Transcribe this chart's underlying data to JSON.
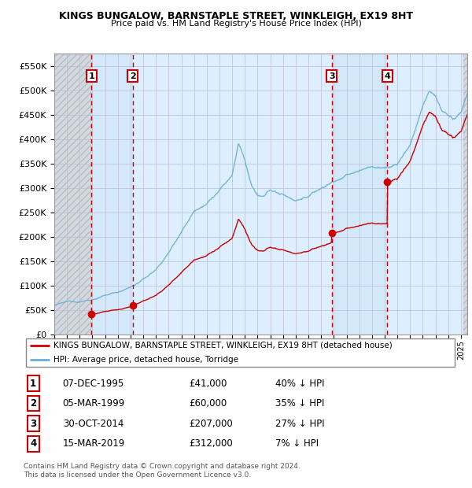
{
  "title1": "KINGS BUNGALOW, BARNSTAPLE STREET, WINKLEIGH, EX19 8HT",
  "title2": "Price paid vs. HM Land Registry's House Price Index (HPI)",
  "xlim_start": 1993.0,
  "xlim_end": 2025.5,
  "ylim_min": 0,
  "ylim_max": 575000,
  "yticks": [
    0,
    50000,
    100000,
    150000,
    200000,
    250000,
    300000,
    350000,
    400000,
    450000,
    500000,
    550000
  ],
  "ytick_labels": [
    "£0",
    "£50K",
    "£100K",
    "£150K",
    "£200K",
    "£250K",
    "£300K",
    "£350K",
    "£400K",
    "£450K",
    "£500K",
    "£550K"
  ],
  "sales": [
    {
      "num": 1,
      "year": 1995.92,
      "price": 41000,
      "date": "07-DEC-1995",
      "pct": "40% ↓ HPI"
    },
    {
      "num": 2,
      "year": 1999.17,
      "price": 60000,
      "date": "05-MAR-1999",
      "pct": "35% ↓ HPI"
    },
    {
      "num": 3,
      "year": 2014.83,
      "price": 207000,
      "date": "30-OCT-2014",
      "pct": "27% ↓ HPI"
    },
    {
      "num": 4,
      "year": 2019.21,
      "price": 312000,
      "date": "15-MAR-2019",
      "pct": "7% ↓ HPI"
    }
  ],
  "hpi_color": "#6baed6",
  "sale_color": "#cc0000",
  "legend_entry1": "KINGS BUNGALOW, BARNSTAPLE STREET, WINKLEIGH, EX19 8HT (detached house)",
  "legend_entry2": "HPI: Average price, detached house, Torridge",
  "footnote1": "Contains HM Land Registry data © Crown copyright and database right 2024.",
  "footnote2": "This data is licensed under the Open Government Licence v3.0.",
  "background_color": "#ffffff"
}
